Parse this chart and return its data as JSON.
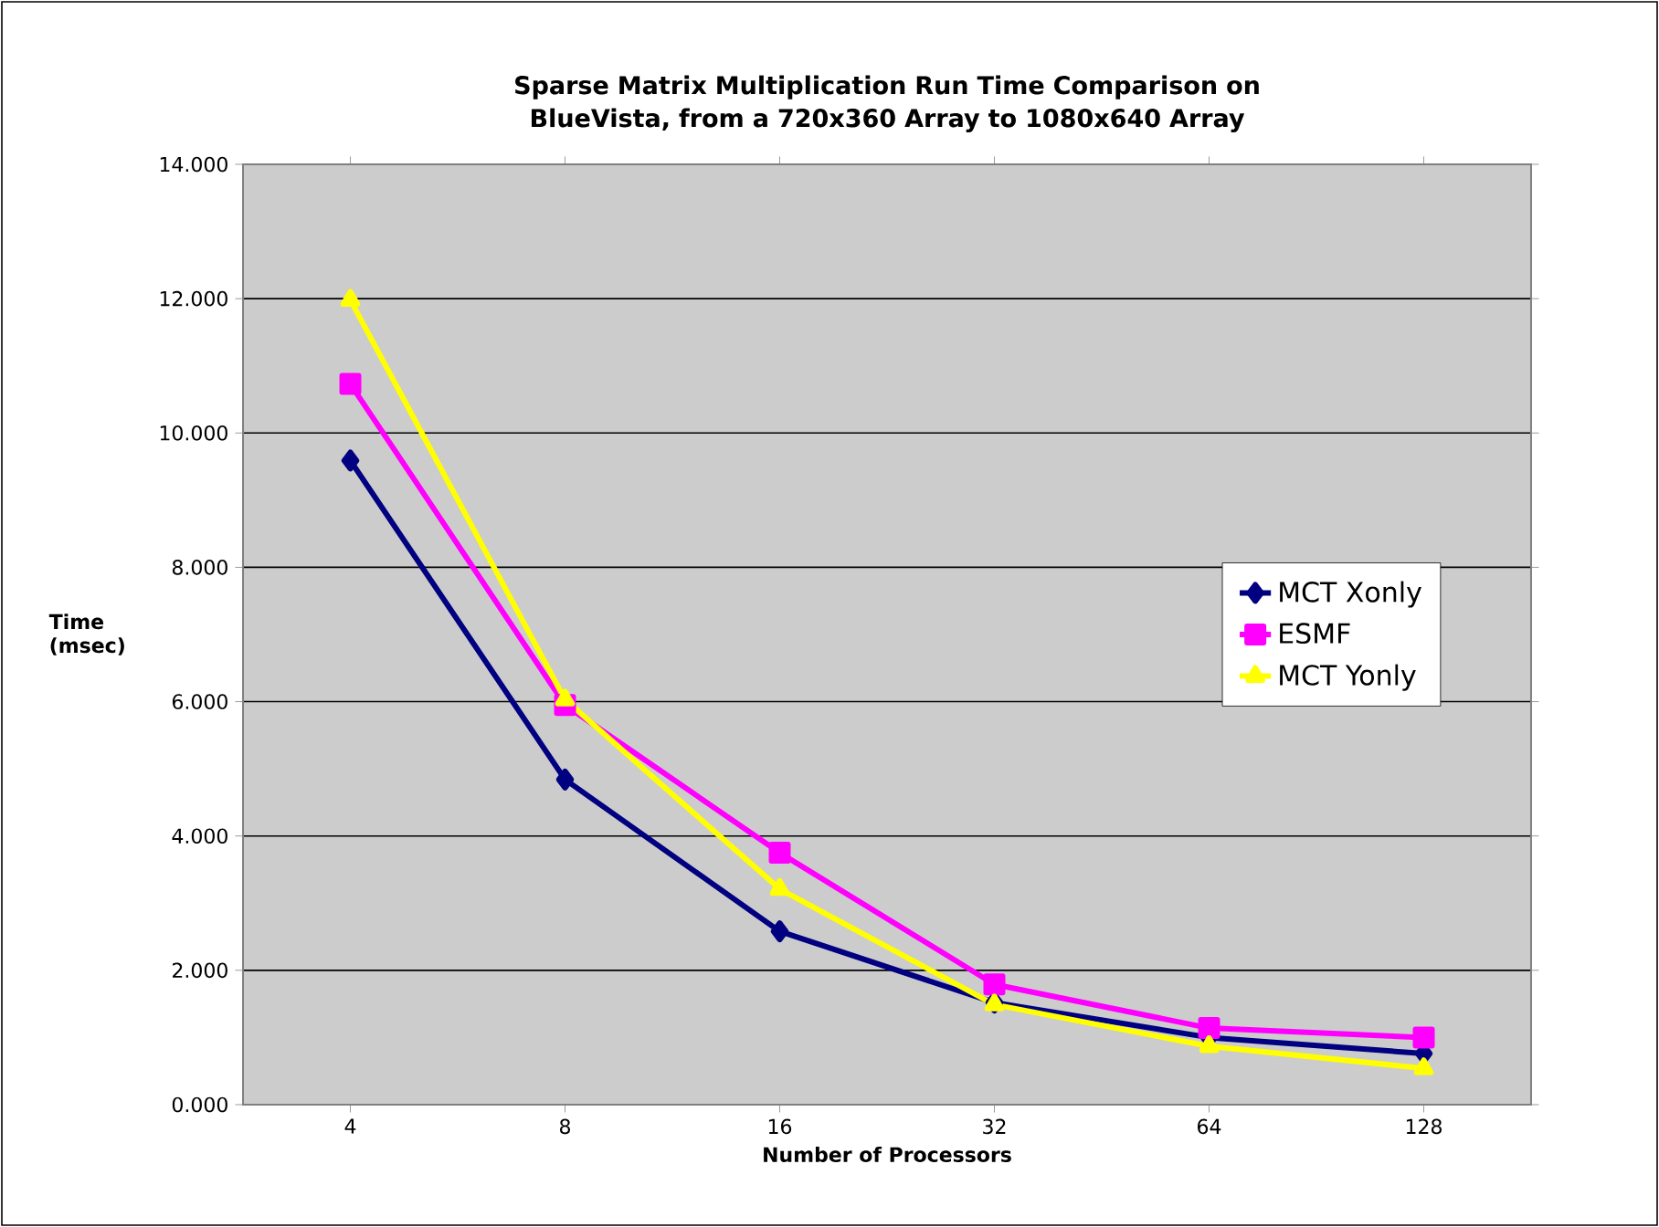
{
  "chart_data": {
    "type": "line",
    "title": "Sparse Matrix Multiplication Run Time Comparison on BlueVista, from a 720x360 Array to 1080x640 Array",
    "xlabel": "Number of Processors",
    "ylabel": "Time (msec)",
    "categories": [
      "4",
      "8",
      "16",
      "32",
      "64",
      "128"
    ],
    "series": [
      {
        "name": "MCT Xonly",
        "color": "#000080",
        "marker": "diamond",
        "values": [
          9.59,
          4.84,
          2.58,
          1.52,
          1.0,
          0.76
        ]
      },
      {
        "name": "ESMF",
        "color": "#ff00ff",
        "marker": "square",
        "values": [
          10.73,
          5.95,
          3.75,
          1.79,
          1.14,
          1.0
        ]
      },
      {
        "name": "MCT Yonly",
        "color": "#ffff00",
        "marker": "triangle",
        "values": [
          11.98,
          6.03,
          3.21,
          1.49,
          0.87,
          0.54
        ]
      }
    ],
    "ylim": [
      0,
      14
    ],
    "yticks": [
      {
        "value": 0,
        "label": "0.000"
      },
      {
        "value": 2,
        "label": "2.000"
      },
      {
        "value": 4,
        "label": "4.000"
      },
      {
        "value": 6,
        "label": "6.000"
      },
      {
        "value": 8,
        "label": "8.000"
      },
      {
        "value": 10,
        "label": "10.000"
      },
      {
        "value": 12,
        "label": "12.000"
      },
      {
        "value": 14,
        "label": "14.000"
      }
    ],
    "grid": "y",
    "legend": "right",
    "line_style": "solid"
  }
}
